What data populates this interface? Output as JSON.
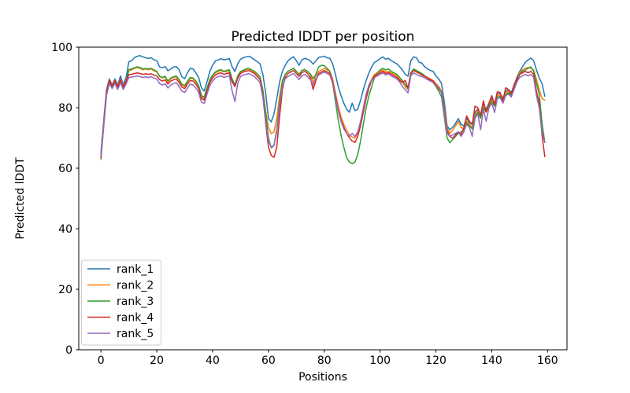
{
  "chart_data": {
    "type": "line",
    "title": "Predicted lDDT per position",
    "xlabel": "Positions",
    "ylabel": "Predicted lDDT",
    "xlim": [
      -7.95,
      166.95
    ],
    "ylim": [
      0,
      100
    ],
    "xticks": [
      0,
      20,
      40,
      60,
      80,
      100,
      120,
      140,
      160
    ],
    "yticks": [
      0,
      20,
      40,
      60,
      80,
      100
    ],
    "grid": false,
    "legend_position": "lower left",
    "x_start": 0,
    "x_step": 1,
    "n_points": 160,
    "series": [
      {
        "name": "rank_1",
        "color": "#1f77b4",
        "values": [
          65.0,
          76.0,
          86.0,
          89.5,
          87.5,
          89.5,
          87.5,
          90.5,
          87.5,
          90.0,
          95.2,
          95.5,
          96.5,
          97.0,
          97.2,
          96.8,
          96.5,
          96.3,
          96.5,
          95.8,
          95.5,
          93.5,
          93.2,
          93.6,
          92.2,
          92.8,
          93.4,
          93.6,
          92.5,
          90.2,
          89.6,
          91.5,
          93.0,
          92.8,
          91.5,
          90.0,
          86.5,
          85.5,
          88.5,
          92.0,
          94.0,
          95.5,
          95.8,
          96.2,
          95.8,
          96.0,
          96.2,
          93.5,
          92.0,
          94.5,
          96.0,
          96.5,
          96.8,
          97.0,
          96.5,
          95.8,
          95.2,
          94.5,
          91.0,
          85.0,
          76.5,
          75.3,
          78.0,
          83.0,
          88.5,
          92.0,
          94.0,
          95.5,
          96.3,
          96.8,
          95.5,
          94.0,
          95.8,
          96.3,
          96.0,
          95.5,
          94.4,
          95.5,
          96.6,
          96.8,
          97.0,
          96.5,
          96.3,
          94.5,
          91.0,
          87.0,
          84.0,
          81.5,
          79.5,
          78.5,
          81.5,
          79.0,
          79.5,
          82.5,
          86.0,
          89.0,
          91.5,
          93.5,
          95.0,
          95.5,
          96.2,
          96.8,
          96.0,
          96.3,
          95.5,
          95.0,
          94.5,
          93.5,
          92.5,
          91.0,
          90.4,
          95.5,
          96.8,
          96.5,
          95.0,
          94.7,
          93.5,
          92.8,
          92.3,
          92.0,
          90.5,
          89.5,
          88.0,
          82.0,
          74.0,
          72.7,
          73.5,
          74.8,
          76.4,
          74.5,
          74.0,
          76.5,
          75.0,
          74.5,
          78.5,
          79.5,
          77.5,
          81.0,
          79.5,
          81.5,
          83.0,
          81.5,
          84.5,
          84.8,
          83.0,
          85.5,
          86.0,
          85.0,
          87.5,
          90.0,
          92.0,
          93.5,
          95.0,
          95.8,
          96.4,
          95.5,
          92.5,
          89.8,
          88.0,
          83.8
        ]
      },
      {
        "name": "rank_2",
        "color": "#ff7f0e",
        "values": [
          64.0,
          75.0,
          85.0,
          89.0,
          87.0,
          89.0,
          87.0,
          89.5,
          87.0,
          89.0,
          92.2,
          92.5,
          93.0,
          93.2,
          93.0,
          92.5,
          92.8,
          92.5,
          92.8,
          92.2,
          91.8,
          90.5,
          89.8,
          90.2,
          88.5,
          89.5,
          90.0,
          90.3,
          89.0,
          87.5,
          87.0,
          88.5,
          89.8,
          89.5,
          88.5,
          87.0,
          83.5,
          83.0,
          86.0,
          89.0,
          90.5,
          91.5,
          92.0,
          92.3,
          91.8,
          92.0,
          92.2,
          89.0,
          87.0,
          90.0,
          91.8,
          92.2,
          92.5,
          92.8,
          92.3,
          91.8,
          91.0,
          90.0,
          86.0,
          79.0,
          73.5,
          71.4,
          72.0,
          76.5,
          84.0,
          89.0,
          91.0,
          92.0,
          92.5,
          93.0,
          92.0,
          91.0,
          92.3,
          92.6,
          92.0,
          91.0,
          88.3,
          90.5,
          92.0,
          92.5,
          93.0,
          92.5,
          92.0,
          89.5,
          85.0,
          80.5,
          77.0,
          74.5,
          72.5,
          71.0,
          70.3,
          70.0,
          71.5,
          75.0,
          79.5,
          84.0,
          87.5,
          89.5,
          91.0,
          91.5,
          92.0,
          92.5,
          91.8,
          92.0,
          91.5,
          91.0,
          90.5,
          89.5,
          88.5,
          87.0,
          86.0,
          91.0,
          92.5,
          92.0,
          91.5,
          91.0,
          90.5,
          90.0,
          89.5,
          89.0,
          88.0,
          87.0,
          85.5,
          80.0,
          73.5,
          71.5,
          72.5,
          74.0,
          75.5,
          73.5,
          73.0,
          75.5,
          74.5,
          73.5,
          77.5,
          79.0,
          77.0,
          80.5,
          79.0,
          81.0,
          82.5,
          81.0,
          84.0,
          84.3,
          82.5,
          85.0,
          85.5,
          84.5,
          87.0,
          89.5,
          91.5,
          92.5,
          93.0,
          93.3,
          93.0,
          92.5,
          89.5,
          86.0,
          83.0,
          82.5
        ]
      },
      {
        "name": "rank_3",
        "color": "#2ca02c",
        "values": [
          63.0,
          74.0,
          84.5,
          88.5,
          86.8,
          88.5,
          86.5,
          89.0,
          86.5,
          88.5,
          92.6,
          92.8,
          93.2,
          93.5,
          93.3,
          92.8,
          93.0,
          92.8,
          93.0,
          92.5,
          92.0,
          90.3,
          90.0,
          90.4,
          88.8,
          89.8,
          90.2,
          90.5,
          89.3,
          87.8,
          87.3,
          88.8,
          90.0,
          89.8,
          88.8,
          87.3,
          84.0,
          83.5,
          86.5,
          89.3,
          90.8,
          91.8,
          92.3,
          92.6,
          92.0,
          92.3,
          92.5,
          89.5,
          87.5,
          90.5,
          92.0,
          92.4,
          92.8,
          93.0,
          92.5,
          92.0,
          91.2,
          90.2,
          85.5,
          78.0,
          70.0,
          66.7,
          67.5,
          73.0,
          82.0,
          88.5,
          91.0,
          92.0,
          92.5,
          93.0,
          92.0,
          91.0,
          92.3,
          92.6,
          92.0,
          91.2,
          89.6,
          91.0,
          93.5,
          94.0,
          93.9,
          93.0,
          92.0,
          88.0,
          82.0,
          76.0,
          71.0,
          67.0,
          63.5,
          62.0,
          61.5,
          62.0,
          64.5,
          69.0,
          74.5,
          80.0,
          84.0,
          87.0,
          90.0,
          91.5,
          92.5,
          93.0,
          92.5,
          92.8,
          92.0,
          91.5,
          91.0,
          90.0,
          89.0,
          87.5,
          86.5,
          91.5,
          92.8,
          92.3,
          91.8,
          91.3,
          90.5,
          89.8,
          89.0,
          88.3,
          87.0,
          85.5,
          83.5,
          77.0,
          70.0,
          68.4,
          69.5,
          70.5,
          71.5,
          72.0,
          72.5,
          75.0,
          74.0,
          73.0,
          77.0,
          78.5,
          76.5,
          80.0,
          78.5,
          80.5,
          82.0,
          80.5,
          83.5,
          83.8,
          82.0,
          84.5,
          85.0,
          84.0,
          86.5,
          89.0,
          91.0,
          92.0,
          92.5,
          93.0,
          93.5,
          92.0,
          88.0,
          84.5,
          75.0,
          68.5
        ]
      },
      {
        "name": "rank_4",
        "color": "#d62728",
        "values": [
          63.5,
          74.5,
          85.0,
          89.2,
          87.2,
          89.0,
          86.8,
          89.3,
          86.8,
          88.8,
          90.9,
          91.0,
          91.3,
          91.5,
          91.3,
          91.0,
          91.2,
          91.0,
          91.2,
          90.8,
          90.5,
          89.3,
          88.8,
          89.2,
          87.8,
          88.8,
          89.2,
          89.5,
          88.3,
          86.8,
          86.3,
          87.8,
          89.0,
          88.8,
          87.8,
          86.3,
          83.0,
          82.5,
          85.5,
          88.3,
          89.8,
          90.8,
          91.3,
          91.5,
          91.0,
          91.3,
          91.5,
          88.5,
          87.0,
          89.8,
          91.3,
          91.8,
          92.0,
          92.3,
          91.8,
          91.3,
          90.3,
          89.3,
          84.0,
          75.0,
          67.0,
          64.2,
          63.6,
          67.0,
          77.0,
          86.0,
          90.0,
          91.3,
          91.8,
          92.3,
          91.3,
          90.3,
          91.6,
          92.0,
          91.3,
          90.0,
          86.0,
          89.0,
          91.3,
          91.8,
          92.3,
          91.8,
          91.3,
          88.5,
          84.0,
          79.5,
          76.0,
          73.5,
          71.5,
          70.0,
          69.0,
          68.5,
          70.5,
          74.0,
          78.5,
          83.0,
          86.5,
          89.0,
          90.5,
          91.0,
          91.5,
          92.0,
          91.3,
          91.6,
          91.0,
          90.5,
          90.0,
          89.0,
          88.3,
          89.0,
          86.5,
          91.3,
          92.3,
          91.8,
          91.3,
          90.8,
          90.3,
          89.8,
          89.3,
          88.8,
          87.5,
          86.5,
          85.0,
          79.5,
          72.5,
          70.5,
          69.9,
          71.0,
          72.0,
          71.0,
          73.5,
          77.3,
          75.5,
          74.5,
          80.5,
          80.0,
          77.5,
          82.3,
          78.5,
          81.5,
          84.0,
          81.0,
          85.3,
          85.0,
          82.5,
          86.6,
          86.0,
          84.5,
          87.5,
          89.5,
          91.0,
          91.5,
          92.0,
          91.5,
          92.0,
          91.0,
          85.5,
          81.5,
          71.0,
          63.8
        ]
      },
      {
        "name": "rank_5",
        "color": "#9467bd",
        "values": [
          64.0,
          74.0,
          84.0,
          88.0,
          86.3,
          88.0,
          86.0,
          88.3,
          86.0,
          87.8,
          90.0,
          90.1,
          90.3,
          90.5,
          90.3,
          90.0,
          90.2,
          90.0,
          90.2,
          89.8,
          89.5,
          88.0,
          87.5,
          87.9,
          86.5,
          87.5,
          88.0,
          88.3,
          87.0,
          85.5,
          85.0,
          86.5,
          87.8,
          87.5,
          86.5,
          85.0,
          81.8,
          81.4,
          84.5,
          87.3,
          88.8,
          89.8,
          90.3,
          90.5,
          90.0,
          90.3,
          90.5,
          85.5,
          82.0,
          88.0,
          90.3,
          90.8,
          91.0,
          91.3,
          90.8,
          90.3,
          89.3,
          88.3,
          83.5,
          75.5,
          69.0,
          67.0,
          67.5,
          72.0,
          80.5,
          87.0,
          89.5,
          90.3,
          90.8,
          91.3,
          90.3,
          89.3,
          90.6,
          91.0,
          90.3,
          89.3,
          87.5,
          89.5,
          90.8,
          91.3,
          91.8,
          91.3,
          90.8,
          88.0,
          83.5,
          79.0,
          75.5,
          73.0,
          71.5,
          70.5,
          71.5,
          70.5,
          72.0,
          75.5,
          80.0,
          84.5,
          87.5,
          89.0,
          90.0,
          90.5,
          91.0,
          91.5,
          90.8,
          91.2,
          90.5,
          90.0,
          89.5,
          88.5,
          87.0,
          86.0,
          84.9,
          90.5,
          91.5,
          91.0,
          90.5,
          90.3,
          89.8,
          89.3,
          88.8,
          88.3,
          87.3,
          86.3,
          84.8,
          78.5,
          71.5,
          70.5,
          71.0,
          71.5,
          72.0,
          70.5,
          72.0,
          74.5,
          73.5,
          70.5,
          76.5,
          78.0,
          72.7,
          79.5,
          75.5,
          80.0,
          81.5,
          78.4,
          83.0,
          83.3,
          81.5,
          84.0,
          84.5,
          83.5,
          86.0,
          88.5,
          90.0,
          90.5,
          91.0,
          90.5,
          91.0,
          90.0,
          84.0,
          80.0,
          72.0,
          68.5
        ]
      }
    ]
  }
}
